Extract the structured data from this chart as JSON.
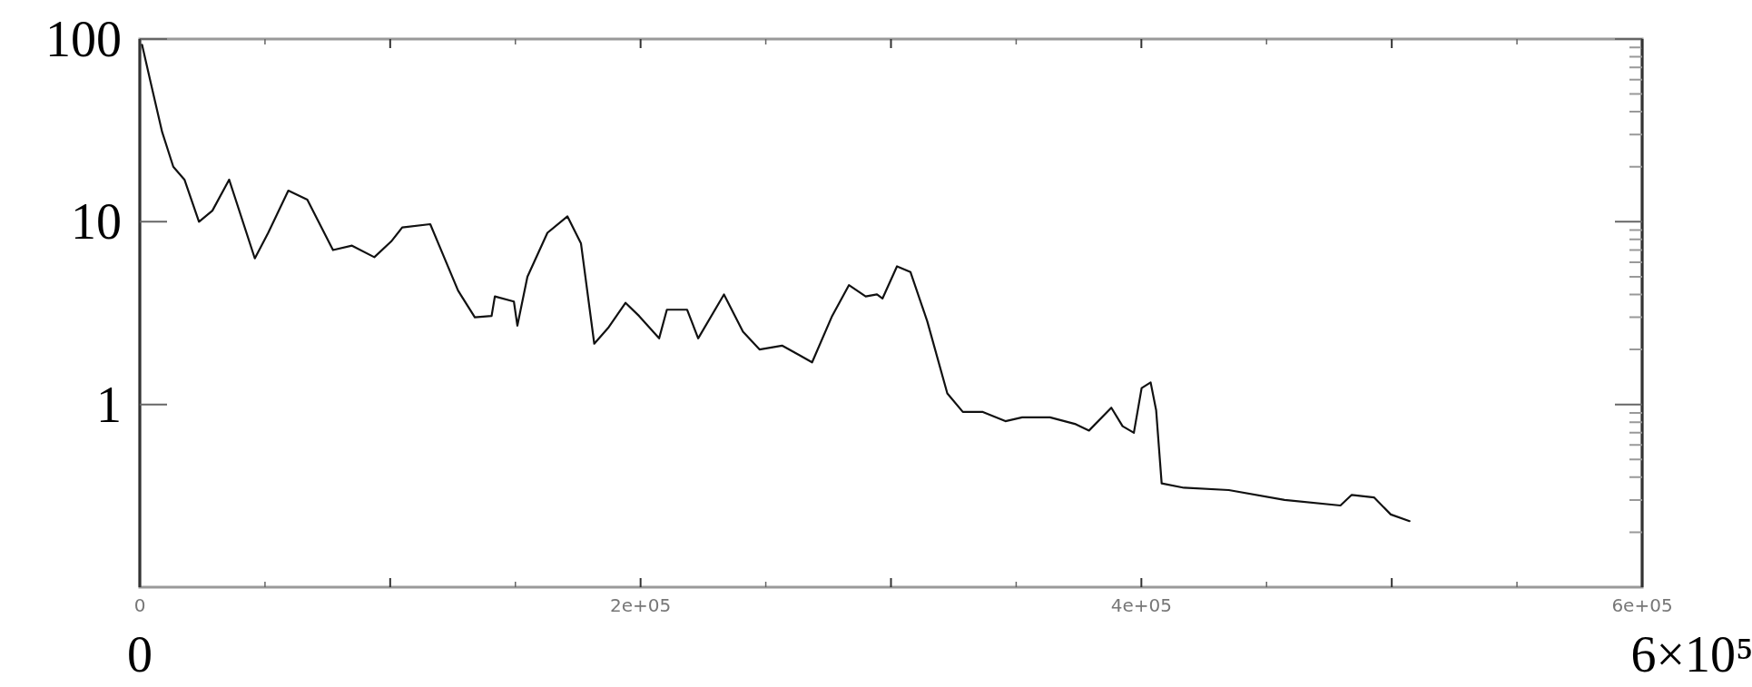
{
  "chart_data": {
    "type": "line",
    "log": "y",
    "grid": false,
    "marker": "none",
    "line_style": "solid",
    "xlim": [
      0,
      600000
    ],
    "ylim": [
      0.1,
      100
    ],
    "xticks": [
      0,
      {
        "value": 100000,
        "label": null
      },
      {
        "value": 200000,
        "label": "2e+05"
      },
      {
        "value": 300000,
        "label": null
      },
      {
        "value": 400000,
        "label": "4e+05"
      },
      {
        "value": 500000,
        "label": null
      },
      {
        "value": 600000,
        "label": "6e+05"
      }
    ],
    "annotations": [
      "0",
      "6×10⁵"
    ],
    "yticks": [
      1,
      10,
      100
    ],
    "series": [
      {
        "color": "#111111",
        "x": [
          900,
          4460,
          8920,
          13380,
          17840,
          23640,
          28990,
          35680,
          45940,
          51290,
          59320,
          66900,
          77160,
          84750,
          93670,
          100400,
          104800,
          116000,
          127100,
          133800,
          140500,
          141800,
          149400,
          150800,
          154800,
          162800,
          170800,
          176200,
          181500,
          187300,
          194000,
          199400,
          207400,
          210500,
          218600,
          223000,
          233300,
          240900,
          247500,
          256500,
          263200,
          268500,
          276500,
          283200,
          289900,
          294400,
          296600,
          302400,
          307800,
          314500,
          322500,
          328700,
          336700,
          345700,
          352400,
          363500,
          373800,
          379100,
          388000,
          392500,
          397000,
          400100,
          403700,
          405900,
          408100,
          417000,
          434900,
          457200,
          479500,
          484000,
          492900,
          499600,
          507100
        ],
        "values": [
          93,
          57,
          31,
          20,
          17,
          10,
          11.5,
          17,
          6.3,
          8.7,
          14.8,
          13.2,
          7.0,
          7.4,
          6.4,
          7.8,
          9.3,
          9.7,
          4.2,
          3.0,
          3.05,
          3.9,
          3.66,
          2.7,
          5.0,
          8.7,
          10.7,
          7.6,
          2.15,
          2.65,
          3.6,
          3.05,
          2.3,
          3.3,
          3.3,
          2.3,
          4.0,
          2.5,
          2.0,
          2.1,
          1.87,
          1.7,
          3.05,
          4.5,
          3.9,
          4.0,
          3.8,
          5.7,
          5.3,
          2.85,
          1.15,
          0.91,
          0.91,
          0.81,
          0.85,
          0.85,
          0.78,
          0.72,
          0.96,
          0.76,
          0.7,
          1.23,
          1.32,
          0.93,
          0.37,
          0.35,
          0.34,
          0.3,
          0.28,
          0.32,
          0.31,
          0.25,
          0.23
        ]
      }
    ]
  }
}
